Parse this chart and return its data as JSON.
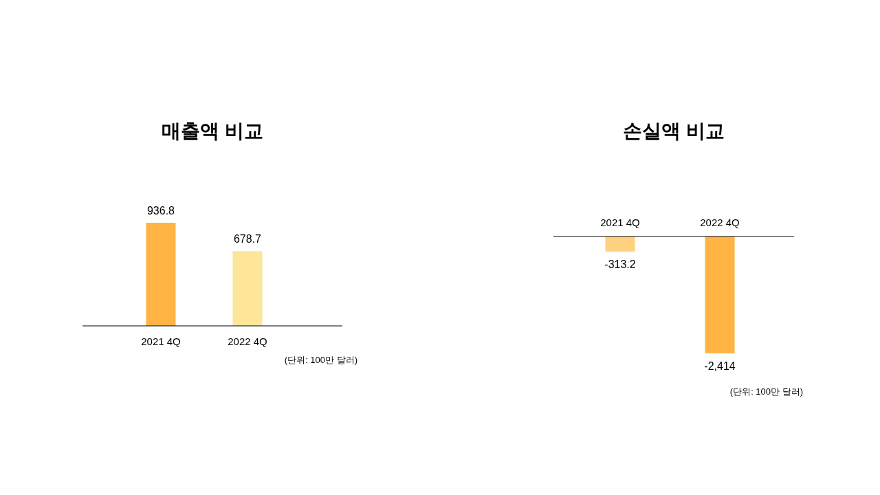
{
  "chart_data": [
    {
      "type": "bar",
      "title": "매출액 비교",
      "categories": [
        "2021 4Q",
        "2022 4Q"
      ],
      "series": [
        {
          "color": null,
          "values": [
            936.8,
            678.7
          ]
        }
      ],
      "colors": [
        "#ffb443",
        "#ffe598"
      ],
      "data_labels": true,
      "annotations": [
        "(단위: 100만 달러)"
      ]
    },
    {
      "type": "bar",
      "title": "손실액 비교",
      "categories": [
        "2021 4Q",
        "2022 4Q"
      ],
      "series": [
        {
          "color": null,
          "values": [
            -313.2,
            -2414
          ],
          "value_labels": [
            "-313.2",
            "-2,414"
          ]
        }
      ],
      "colors": [
        "#ffd27f",
        "#ffb443"
      ],
      "annotations": [
        "(단위: 100만 달러)"
      ]
    }
  ]
}
